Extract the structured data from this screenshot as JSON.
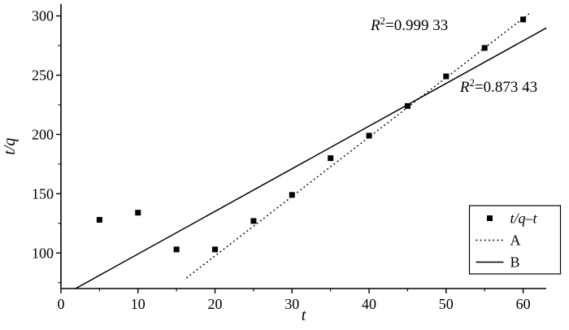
{
  "chart_data": {
    "type": "scatter",
    "title": "",
    "xlabel": "t",
    "ylabel": "t/q",
    "xlim": [
      0,
      63
    ],
    "ylim": [
      70,
      310
    ],
    "x_ticks": [
      0,
      10,
      20,
      30,
      40,
      50,
      60
    ],
    "x_minor_ticks": [
      5,
      15,
      25,
      35,
      45,
      55
    ],
    "y_ticks": [
      100,
      150,
      200,
      250,
      300
    ],
    "y_minor_ticks": [
      75,
      125,
      175,
      225,
      275
    ],
    "grid": false,
    "axis_color": "#000000",
    "background": "#ffffff",
    "series": [
      {
        "name": "t/q–t",
        "type": "scatter",
        "marker": "square",
        "color": "#000000",
        "x": [
          5,
          10,
          15,
          20,
          25,
          30,
          35,
          40,
          45,
          50,
          55,
          60
        ],
        "y": [
          128,
          134,
          103,
          103,
          127,
          149,
          180,
          199,
          224,
          249,
          273,
          297
        ]
      }
    ],
    "lines": [
      {
        "name": "A",
        "style": "dotted",
        "color": "#000000",
        "x1": 16.3,
        "y1": 79,
        "x2": 60.8,
        "y2": 302,
        "r_squared": 0.99933
      },
      {
        "name": "B",
        "style": "solid",
        "color": "#000000",
        "x1": 1.9,
        "y1": 70,
        "x2": 63,
        "y2": 289.8,
        "r_squared": 0.87343
      }
    ],
    "annotations": [
      {
        "var": "R",
        "sup": "2",
        "rest": "=0.999 33",
        "x": 40.2,
        "y": 288
      },
      {
        "var": "R",
        "sup": "2",
        "rest": "=0.873 43",
        "x": 51.8,
        "y": 236
      }
    ],
    "legend": {
      "position": "lower right",
      "entries": [
        {
          "sample": "square-marker",
          "label": "t/q–t",
          "italic": true
        },
        {
          "sample": "dotted-line",
          "label": "A",
          "italic": false
        },
        {
          "sample": "solid-line",
          "label": "B",
          "italic": false
        }
      ]
    }
  }
}
